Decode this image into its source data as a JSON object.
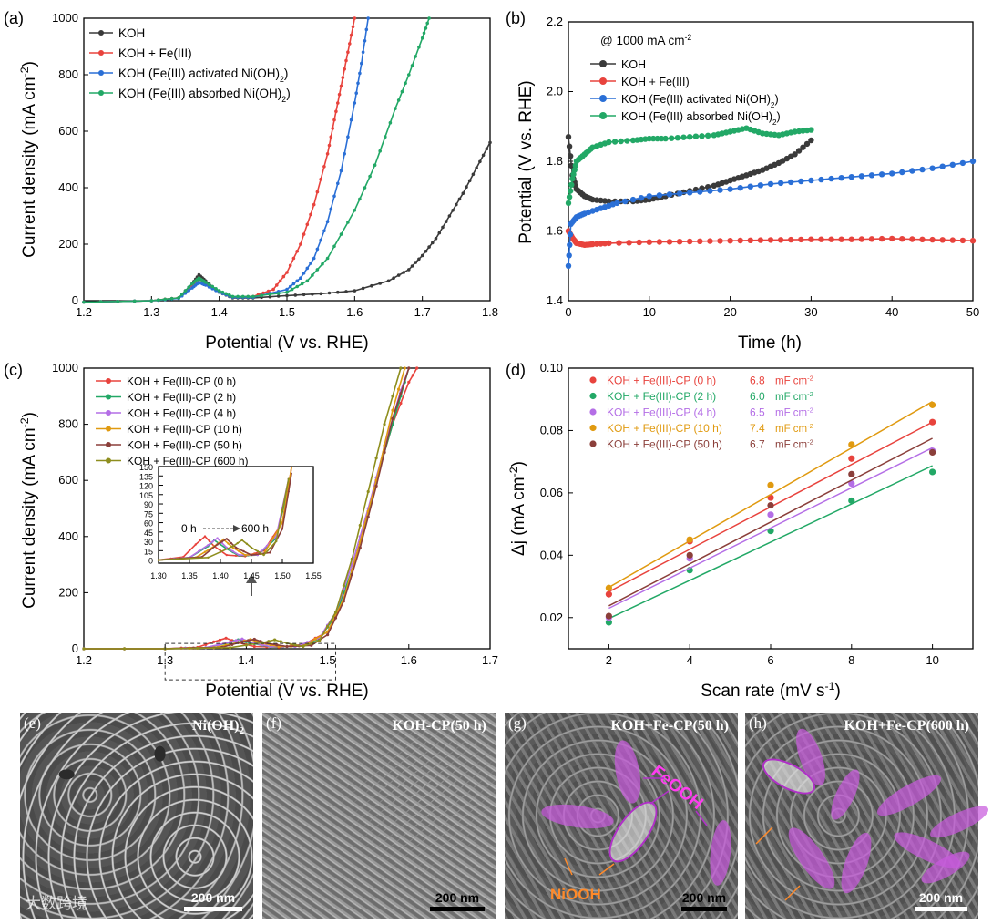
{
  "colors": {
    "black_series": "#3a3a3a",
    "red_series": "#e8433d",
    "blue_series": "#2a6fd6",
    "green_series": "#22a866",
    "purple_series": "#b46ee6",
    "orange_series": "#e09a10",
    "brown_series": "#8b3f3a",
    "olive_series": "#8e8e1e",
    "fe_label": "#ff3cf0",
    "ni_label": "#ff8a2a",
    "arrow_purple": "#b030c8",
    "arrow_orange": "#ff8a2a"
  },
  "chart_data": [
    {
      "id": "a",
      "panel_label": "(a)",
      "type": "line",
      "xlabel": "Potential (V vs. RHE)",
      "ylabel": "Current density (mA cm-2)",
      "ylabel_base": "Current density (mA cm",
      "ylabel_sup": "-2",
      "ylabel_end": ")",
      "xlim": [
        1.2,
        1.8
      ],
      "ylim": [
        0,
        1000
      ],
      "xticks": [
        "1.2",
        "1.3",
        "1.4",
        "1.5",
        "1.6",
        "1.7",
        "1.8"
      ],
      "yticks": [
        "0",
        "200",
        "400",
        "600",
        "800",
        "1000"
      ],
      "legend_position": "top-left",
      "series": [
        {
          "name": "KOH",
          "legend_base": "KOH",
          "legend_sub": "",
          "legend_end": "",
          "color": "#3a3a3a",
          "x": [
            1.2,
            1.3,
            1.34,
            1.36,
            1.37,
            1.38,
            1.4,
            1.42,
            1.45,
            1.5,
            1.55,
            1.6,
            1.65,
            1.68,
            1.7,
            1.72,
            1.74,
            1.76,
            1.78,
            1.8
          ],
          "y": [
            -5,
            0,
            10,
            60,
            92,
            70,
            30,
            10,
            10,
            18,
            25,
            35,
            70,
            110,
            160,
            220,
            300,
            380,
            470,
            560
          ]
        },
        {
          "name": "KOH + Fe(III)",
          "legend_base": "KOH + Fe(III)",
          "legend_sub": "",
          "legend_end": "",
          "color": "#e8433d",
          "x": [
            1.2,
            1.3,
            1.34,
            1.36,
            1.37,
            1.38,
            1.4,
            1.42,
            1.45,
            1.48,
            1.5,
            1.52,
            1.54,
            1.56,
            1.57,
            1.58,
            1.59,
            1.6
          ],
          "y": [
            -5,
            0,
            10,
            55,
            80,
            62,
            30,
            12,
            15,
            40,
            100,
            200,
            340,
            520,
            640,
            760,
            880,
            1000
          ]
        },
        {
          "name": "KOH (Fe(III) activated Ni(OH)2)",
          "legend_base": "KOH (Fe(III) activated Ni(OH)",
          "legend_sub": "2",
          "legend_end": ")",
          "color": "#2a6fd6",
          "x": [
            1.2,
            1.3,
            1.34,
            1.36,
            1.37,
            1.38,
            1.4,
            1.42,
            1.45,
            1.5,
            1.52,
            1.54,
            1.56,
            1.58,
            1.6,
            1.61,
            1.62
          ],
          "y": [
            -5,
            0,
            8,
            45,
            65,
            55,
            30,
            12,
            12,
            40,
            80,
            150,
            280,
            460,
            700,
            840,
            1000
          ]
        },
        {
          "name": "KOH (Fe(III) absorbed Ni(OH)2)",
          "legend_base": "KOH (Fe(III) absorbed Ni(OH)",
          "legend_sub": "2",
          "legend_end": ")",
          "color": "#22a866",
          "x": [
            1.2,
            1.3,
            1.34,
            1.36,
            1.37,
            1.38,
            1.4,
            1.42,
            1.45,
            1.5,
            1.53,
            1.56,
            1.6,
            1.63,
            1.66,
            1.68,
            1.7,
            1.71
          ],
          "y": [
            -5,
            0,
            10,
            60,
            80,
            65,
            35,
            15,
            15,
            30,
            70,
            150,
            320,
            480,
            680,
            800,
            930,
            1000
          ]
        }
      ]
    },
    {
      "id": "b",
      "panel_label": "(b)",
      "type": "line",
      "xlabel": "Time (h)",
      "ylabel": "Potential (V vs. RHE)",
      "xlim": [
        0,
        50
      ],
      "ylim": [
        1.4,
        2.2
      ],
      "xticks": [
        "0",
        "10",
        "20",
        "30",
        "40",
        "50"
      ],
      "yticks": [
        "1.4",
        "1.6",
        "1.8",
        "2.0",
        "2.2"
      ],
      "annotation_base": "@ 1000 mA cm",
      "annotation_sup": "-2",
      "legend_position": "top-left",
      "series": [
        {
          "name": "KOH",
          "legend_base": "KOH",
          "legend_sub": "",
          "legend_end": "",
          "color": "#3a3a3a",
          "x": [
            0,
            0.5,
            1,
            2,
            3,
            5,
            8,
            10,
            12,
            15,
            18,
            20,
            22,
            24,
            26,
            28,
            30
          ],
          "y": [
            1.87,
            1.76,
            1.72,
            1.7,
            1.69,
            1.685,
            1.685,
            1.69,
            1.7,
            1.715,
            1.73,
            1.745,
            1.76,
            1.775,
            1.795,
            1.82,
            1.86
          ]
        },
        {
          "name": "KOH + Fe(III)",
          "legend_base": "KOH + Fe(III)",
          "legend_sub": "",
          "legend_end": "",
          "color": "#e8433d",
          "x": [
            0,
            0.5,
            1,
            2,
            3,
            5,
            10,
            15,
            20,
            25,
            30,
            35,
            40,
            45,
            50
          ],
          "y": [
            1.6,
            1.58,
            1.565,
            1.56,
            1.562,
            1.565,
            1.568,
            1.57,
            1.572,
            1.574,
            1.576,
            1.576,
            1.578,
            1.575,
            1.572
          ]
        },
        {
          "name": "KOH (Fe(III) activated Ni(OH)2)",
          "legend_base": "KOH (Fe(III) activated Ni(OH)",
          "legend_sub": "2",
          "legend_end": ")",
          "color": "#2a6fd6",
          "x": [
            0,
            0.3,
            1,
            2,
            4,
            6,
            10,
            15,
            20,
            25,
            30,
            35,
            40,
            45,
            50
          ],
          "y": [
            1.5,
            1.62,
            1.64,
            1.65,
            1.665,
            1.68,
            1.7,
            1.71,
            1.72,
            1.735,
            1.745,
            1.755,
            1.765,
            1.78,
            1.8
          ]
        },
        {
          "name": "KOH (Fe(III) absorbed Ni(OH)2)",
          "legend_base": "KOH (Fe(III) absorbed Ni(OH)",
          "legend_sub": "2",
          "legend_end": ")",
          "color": "#22a866",
          "x": [
            0,
            0.5,
            1,
            2,
            3,
            5,
            8,
            10,
            12,
            15,
            18,
            20,
            22,
            24,
            26,
            28,
            30
          ],
          "y": [
            1.68,
            1.75,
            1.8,
            1.82,
            1.84,
            1.855,
            1.86,
            1.865,
            1.865,
            1.87,
            1.875,
            1.885,
            1.895,
            1.88,
            1.875,
            1.885,
            1.89
          ]
        }
      ]
    },
    {
      "id": "c",
      "panel_label": "(c)",
      "type": "line",
      "xlabel": "Potential (V vs. RHE)",
      "ylabel": "Current density (mA cm-2)",
      "ylabel_base": "Current density (mA cm",
      "ylabel_sup": "-2",
      "ylabel_end": ")",
      "xlim": [
        1.2,
        1.7
      ],
      "ylim": [
        0,
        1000
      ],
      "xticks": [
        "1.2",
        "1.3",
        "1.4",
        "1.5",
        "1.6",
        "1.7"
      ],
      "yticks": [
        "0",
        "200",
        "400",
        "600",
        "800",
        "1000"
      ],
      "legend_position": "top-left",
      "zoom_box": {
        "xlim": [
          1.3,
          1.51
        ],
        "ylim": [
          -10,
          110
        ]
      },
      "series": [
        {
          "name": "KOH + Fe(III)-CP (0 h)",
          "color": "#e8433d",
          "x": [
            1.2,
            1.3,
            1.34,
            1.36,
            1.375,
            1.39,
            1.41,
            1.44,
            1.47,
            1.5,
            1.52,
            1.54,
            1.56,
            1.58,
            1.6,
            1.61
          ],
          "y": [
            0,
            0,
            5,
            25,
            38,
            22,
            8,
            6,
            15,
            60,
            180,
            380,
            600,
            800,
            950,
            1000
          ]
        },
        {
          "name": "KOH + Fe(III)-CP (2 h)",
          "color": "#22a866",
          "x": [
            1.2,
            1.3,
            1.35,
            1.38,
            1.39,
            1.41,
            1.43,
            1.46,
            1.49,
            1.51,
            1.53,
            1.55,
            1.57,
            1.59,
            1.6
          ],
          "y": [
            0,
            0,
            4,
            22,
            32,
            18,
            7,
            8,
            35,
            120,
            280,
            480,
            700,
            900,
            1000
          ]
        },
        {
          "name": "KOH + Fe(III)-CP (4 h)",
          "color": "#b46ee6",
          "x": [
            1.2,
            1.3,
            1.35,
            1.38,
            1.395,
            1.41,
            1.43,
            1.46,
            1.49,
            1.51,
            1.53,
            1.55,
            1.57,
            1.59,
            1.6
          ],
          "y": [
            0,
            0,
            4,
            24,
            35,
            20,
            8,
            8,
            38,
            130,
            300,
            500,
            720,
            920,
            1000
          ]
        },
        {
          "name": "KOH + Fe(III)-CP (10 h)",
          "color": "#e09a10",
          "x": [
            1.2,
            1.3,
            1.36,
            1.39,
            1.405,
            1.42,
            1.44,
            1.47,
            1.5,
            1.52,
            1.54,
            1.56,
            1.58,
            1.595
          ],
          "y": [
            0,
            0,
            4,
            22,
            33,
            20,
            8,
            10,
            60,
            180,
            380,
            600,
            850,
            1000
          ]
        },
        {
          "name": "KOH + Fe(III)-CP (50 h)",
          "color": "#8b3f3a",
          "x": [
            1.2,
            1.3,
            1.37,
            1.395,
            1.41,
            1.425,
            1.45,
            1.48,
            1.5,
            1.52,
            1.54,
            1.56,
            1.58,
            1.6
          ],
          "y": [
            0,
            0,
            5,
            25,
            34,
            20,
            8,
            12,
            50,
            170,
            360,
            580,
            820,
            1000
          ]
        },
        {
          "name": "KOH + Fe(III)-CP (600 h)",
          "color": "#8e8e1e",
          "x": [
            1.2,
            1.3,
            1.38,
            1.42,
            1.435,
            1.45,
            1.47,
            1.49,
            1.51,
            1.53,
            1.55,
            1.57,
            1.59
          ],
          "y": [
            0,
            0,
            4,
            22,
            32,
            20,
            8,
            30,
            130,
            320,
            560,
            800,
            1000
          ]
        }
      ],
      "inset": {
        "xlim": [
          1.3,
          1.55
        ],
        "ylim": [
          -5,
          150
        ],
        "xticks": [
          "1.30",
          "1.35",
          "1.40",
          "1.45",
          "1.50",
          "1.55"
        ],
        "yticks": [
          "0",
          "15",
          "30",
          "45",
          "60",
          "75",
          "90",
          "105",
          "120",
          "135",
          "150"
        ],
        "annotation_start": "0 h",
        "annotation_end": "600 h"
      }
    },
    {
      "id": "d",
      "panel_label": "(d)",
      "type": "scatter",
      "xlabel_base": "Scan rate (mV s",
      "xlabel_sup": "-1",
      "xlabel_end": ")",
      "xlabel": "Scan rate (mV s-1)",
      "ylabel": "Δj (mA cm-2)",
      "ylabel_base": "Δj (mA cm",
      "ylabel_sup": "-2",
      "ylabel_end": ")",
      "xlim": [
        1,
        11
      ],
      "ylim": [
        0.01,
        0.1
      ],
      "xticks": [
        "2",
        "4",
        "6",
        "8",
        "10"
      ],
      "xtick_values": [
        2,
        4,
        6,
        8,
        10
      ],
      "yticks": [
        "0.02",
        "0.04",
        "0.06",
        "0.08",
        "0.10"
      ],
      "ytick_values": [
        0.02,
        0.04,
        0.06,
        0.08,
        0.1
      ],
      "unit_label": "mF cm-2",
      "unit_base": "mF cm",
      "unit_sup": "-2",
      "legend_position": "top-left",
      "series": [
        {
          "name": "KOH + Fe(III)-CP (0 h)",
          "value_label": "6.8",
          "color": "#e8433d",
          "x": [
            2,
            4,
            6,
            8,
            10
          ],
          "y": [
            0.0275,
            0.0445,
            0.0585,
            0.071,
            0.0827
          ],
          "fit": [
            0.0283,
            0.0827
          ]
        },
        {
          "name": "KOH + Fe(III)-CP (2 h)",
          "value_label": "6.0",
          "color": "#22a866",
          "x": [
            2,
            4,
            6,
            8,
            10
          ],
          "y": [
            0.0185,
            0.0352,
            0.0478,
            0.0575,
            0.0667
          ],
          "fit": [
            0.0197,
            0.0687
          ]
        },
        {
          "name": "KOH + Fe(III)-CP (4 h)",
          "value_label": "6.5",
          "color": "#b46ee6",
          "x": [
            2,
            4,
            6,
            8,
            10
          ],
          "y": [
            0.02,
            0.039,
            0.053,
            0.063,
            0.0735
          ],
          "fit": [
            0.023,
            0.0745
          ]
        },
        {
          "name": "KOH + Fe(III)-CP (10 h)",
          "value_label": "7.4",
          "color": "#e09a10",
          "x": [
            2,
            4,
            6,
            8,
            10
          ],
          "y": [
            0.0295,
            0.045,
            0.0625,
            0.0755,
            0.0882
          ],
          "fit": [
            0.0297,
            0.0893
          ]
        },
        {
          "name": "KOH + Fe(III)-CP (50 h)",
          "value_label": "6.7",
          "color": "#8b3f3a",
          "x": [
            2,
            4,
            6,
            8,
            10
          ],
          "y": [
            0.0205,
            0.04,
            0.056,
            0.066,
            0.073
          ],
          "fit": [
            0.0238,
            0.0775
          ]
        }
      ]
    }
  ],
  "sem_panels": [
    {
      "label": "(e)",
      "title_base": "Ni(OH)",
      "title_sub": "2",
      "scale": "200 nm"
    },
    {
      "label": "(f)",
      "title_base": "KOH-CP(50 h)",
      "title_sub": "",
      "scale": "200 nm"
    },
    {
      "label": "(g)",
      "title_base": "KOH+Fe-CP(50 h)",
      "title_sub": "",
      "scale": "200 nm",
      "fe_label": "FeOOH",
      "ni_label": "NiOOH"
    },
    {
      "label": "(h)",
      "title_base": "KOH+Fe-CP(600 h)",
      "title_sub": "",
      "scale": "200 nm"
    }
  ],
  "watermark": "大数跨境"
}
